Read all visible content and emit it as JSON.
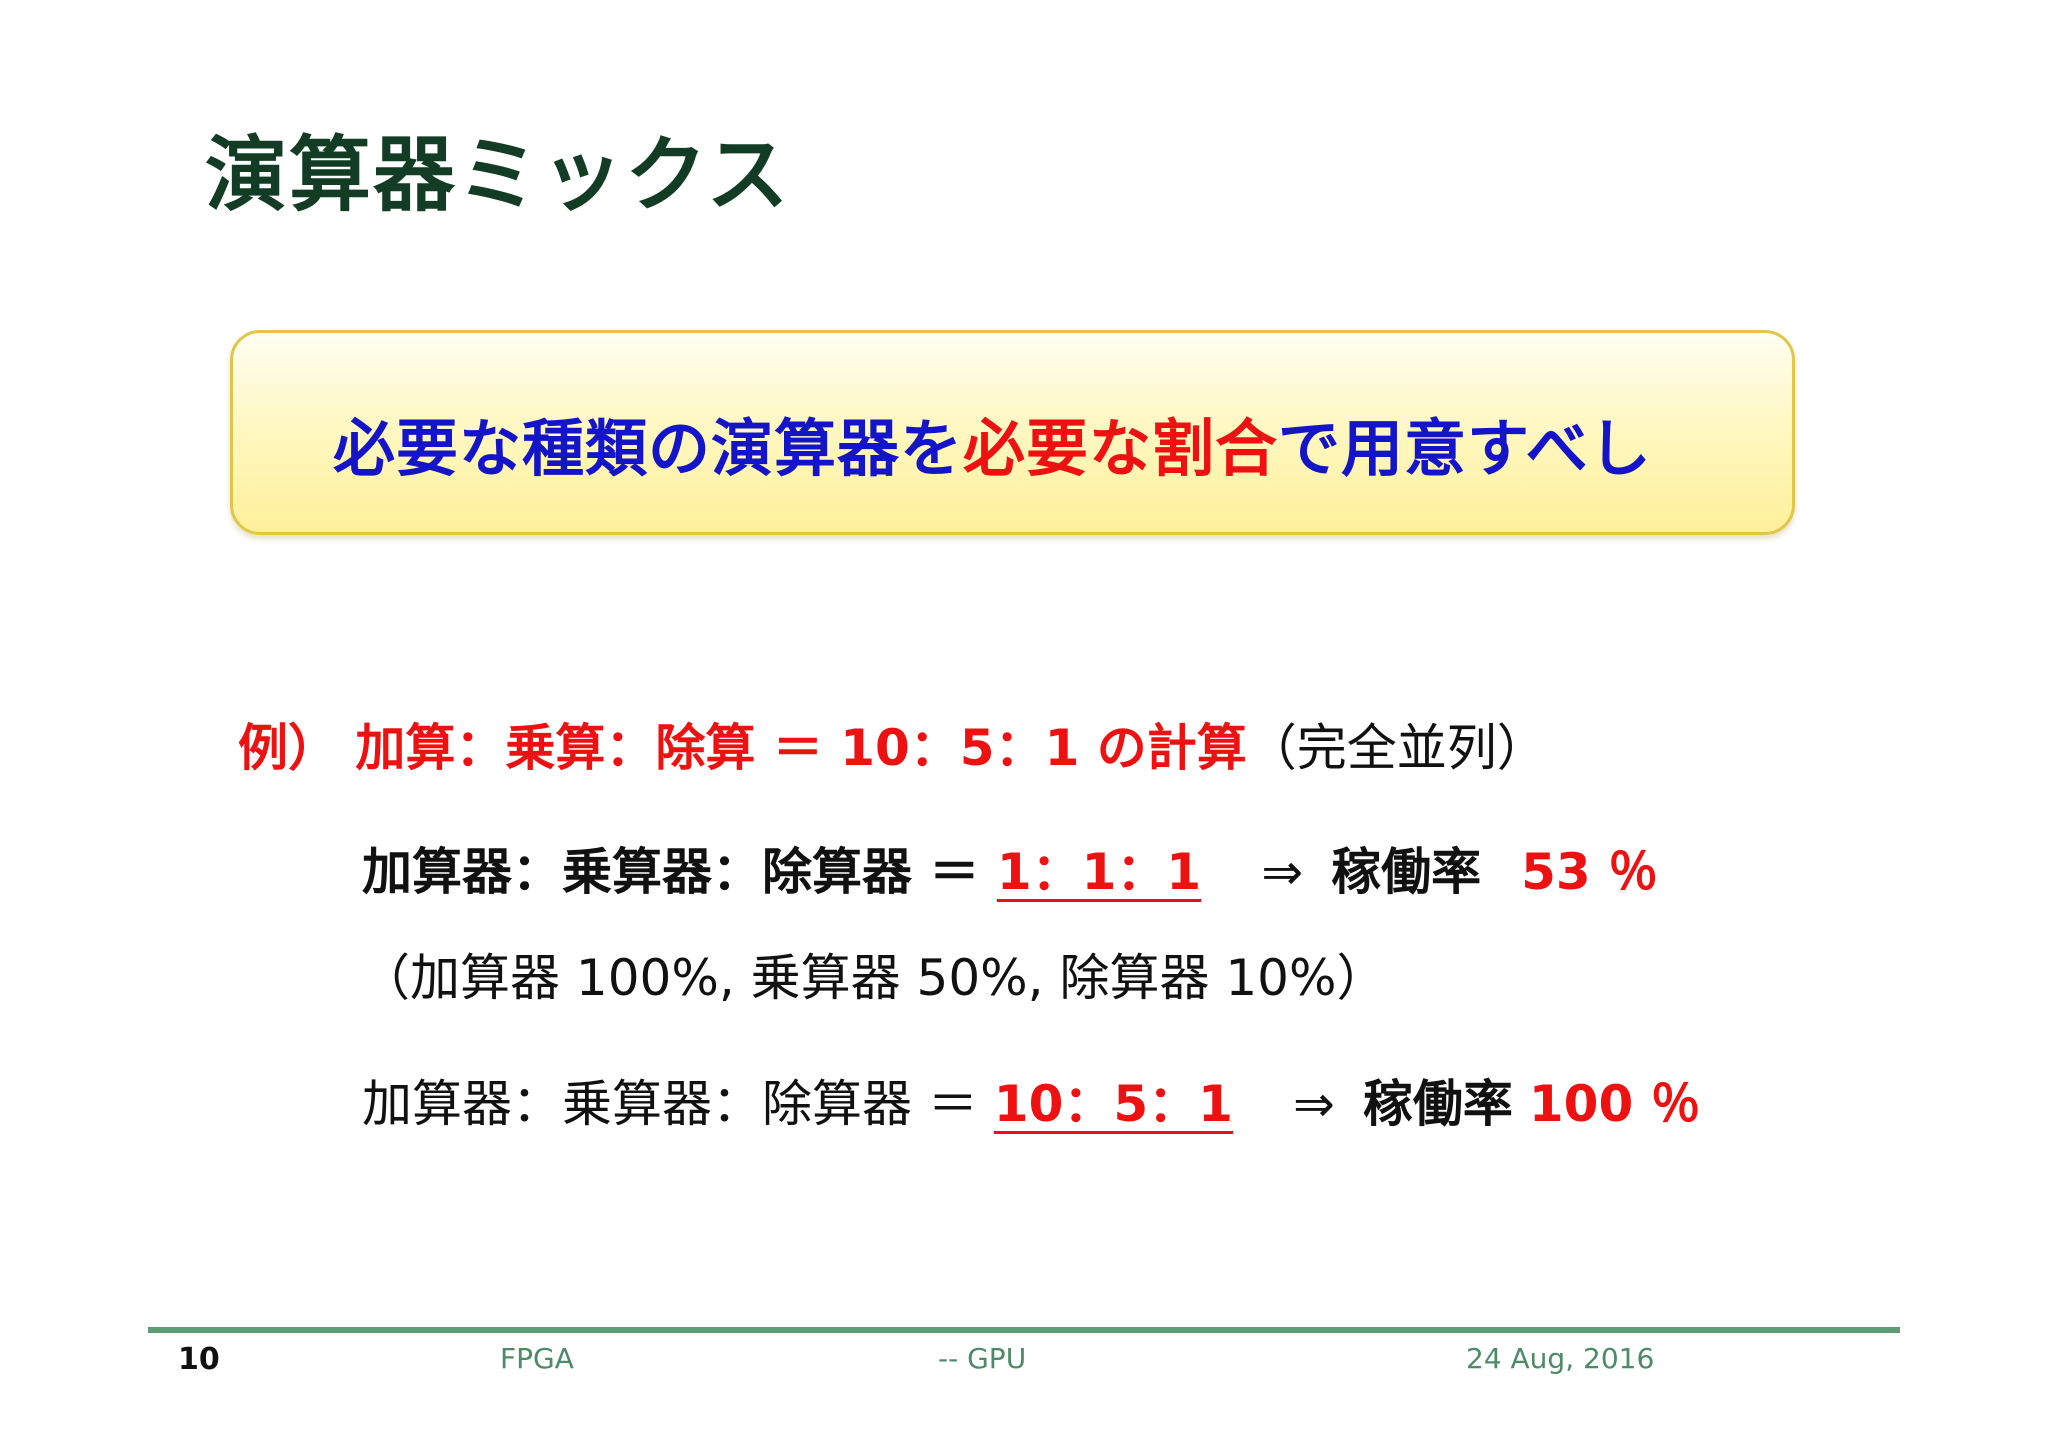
{
  "slide": {
    "title": "演算器ミックス",
    "callout": {
      "part1": "必要な種類の演算器を",
      "part2": "必要な割合",
      "part3": "で用意すべし"
    },
    "example": {
      "prefix": "例）",
      "expr": " 加算：乗算：除算 ＝ 10：5：1 の計算",
      "suffix": "（完全並列）"
    },
    "config1": {
      "label": "加算器：乗算器：除算器 ＝ ",
      "ratio": "1：1：1",
      "arrow": "⇒",
      "rate_label": "稼働率",
      "rate_value": "53 ％"
    },
    "utilization_note": "（加算器 100%, 乗算器 50%, 除算器 10%）",
    "config2": {
      "label": "加算器：乗算器：除算器 ＝ ",
      "ratio": "10：5：1",
      "arrow": "⇒",
      "rate_label": "稼働率",
      "rate_value": "100 ％"
    }
  },
  "footer": {
    "page_number": "10",
    "left": "FPGA",
    "center": "-- GPU",
    "right": "24 Aug, 2016"
  },
  "colors": {
    "title": "#123c24",
    "blue_text": "#1414c8",
    "red_text": "#ee1111",
    "footer_rule": "#5e9c76",
    "callout_border": "#e2c64a"
  }
}
